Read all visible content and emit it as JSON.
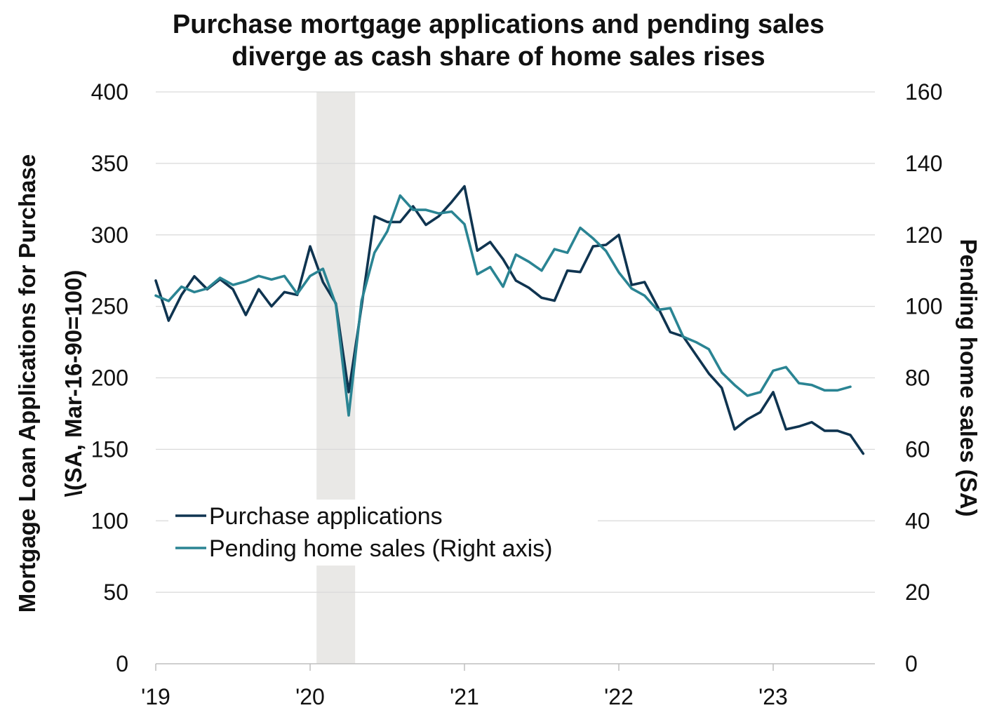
{
  "chart_data": {
    "type": "line",
    "title_line1": "Purchase mortgage applications and pending sales",
    "title_line2": "diverge as cash share of home sales rises",
    "ylabel_left_line1": "Mortgage Loan Applications for Purchase",
    "ylabel_left_line2": "\\(SA, Mar-16-90=100)",
    "ylabel_right": "Pending home sales (SA)",
    "ylim_left": [
      0,
      400
    ],
    "ylim_right": [
      0,
      160
    ],
    "left_ticks": [
      "0",
      "50",
      "100",
      "150",
      "200",
      "250",
      "300",
      "350",
      "400"
    ],
    "right_ticks": [
      "0",
      "20",
      "40",
      "60",
      "80",
      "100",
      "120",
      "140",
      "160"
    ],
    "x_ticks": [
      "'19",
      "'20",
      "'21",
      "'22",
      "'23"
    ],
    "x_range": [
      "2019-01",
      "2023-08"
    ],
    "grid": "horizontal",
    "legend_placement": "lower-left",
    "shaded_period": [
      "2020-02",
      "2020-04"
    ],
    "series": [
      {
        "name": "Purchase applications",
        "axis": "left",
        "color": "#0f3450",
        "x": [
          "2019-01",
          "2019-02",
          "2019-03",
          "2019-04",
          "2019-05",
          "2019-06",
          "2019-07",
          "2019-08",
          "2019-09",
          "2019-10",
          "2019-11",
          "2019-12",
          "2020-01",
          "2020-02",
          "2020-03",
          "2020-04",
          "2020-05",
          "2020-06",
          "2020-07",
          "2020-08",
          "2020-09",
          "2020-10",
          "2020-11",
          "2020-12",
          "2021-01",
          "2021-02",
          "2021-03",
          "2021-04",
          "2021-05",
          "2021-06",
          "2021-07",
          "2021-08",
          "2021-09",
          "2021-10",
          "2021-11",
          "2021-12",
          "2022-01",
          "2022-02",
          "2022-03",
          "2022-04",
          "2022-05",
          "2022-06",
          "2022-07",
          "2022-08",
          "2022-09",
          "2022-10",
          "2022-11",
          "2022-12",
          "2023-01",
          "2023-02",
          "2023-03",
          "2023-04",
          "2023-05",
          "2023-06",
          "2023-07",
          "2023-08"
        ],
        "values": [
          268,
          240,
          258,
          271,
          262,
          269,
          262,
          244,
          262,
          250,
          260,
          258,
          292,
          267,
          252,
          190,
          250,
          313,
          309,
          309,
          320,
          307,
          313,
          323,
          334,
          289,
          295,
          283,
          268,
          263,
          256,
          254,
          275,
          274,
          292,
          293,
          300,
          265,
          267,
          250,
          232,
          229,
          216,
          203,
          193,
          164,
          171,
          176,
          190,
          164,
          166,
          169,
          163,
          163,
          160,
          147
        ]
      },
      {
        "name": "Pending home sales (Right axis)",
        "axis": "right",
        "color": "#2a8493",
        "x": [
          "2019-01",
          "2019-02",
          "2019-03",
          "2019-04",
          "2019-05",
          "2019-06",
          "2019-07",
          "2019-08",
          "2019-09",
          "2019-10",
          "2019-11",
          "2019-12",
          "2020-01",
          "2020-02",
          "2020-03",
          "2020-04",
          "2020-05",
          "2020-06",
          "2020-07",
          "2020-08",
          "2020-09",
          "2020-10",
          "2020-11",
          "2020-12",
          "2021-01",
          "2021-02",
          "2021-03",
          "2021-04",
          "2021-05",
          "2021-06",
          "2021-07",
          "2021-08",
          "2021-09",
          "2021-10",
          "2021-11",
          "2021-12",
          "2022-01",
          "2022-02",
          "2022-03",
          "2022-04",
          "2022-05",
          "2022-06",
          "2022-07",
          "2022-08",
          "2022-09",
          "2022-10",
          "2022-11",
          "2022-12",
          "2023-01",
          "2023-02",
          "2023-03",
          "2023-04",
          "2023-05",
          "2023-06",
          "2023-07",
          "2023-08"
        ],
        "values": [
          103,
          101.5,
          105.5,
          104,
          105,
          108,
          106,
          107,
          108.5,
          107.5,
          108.5,
          103.5,
          108.5,
          110.5,
          100.5,
          69.5,
          101.5,
          115,
          121,
          131,
          127,
          127,
          126,
          126.5,
          123,
          109,
          111,
          105.5,
          114.5,
          112.5,
          110,
          116,
          115,
          122,
          119,
          115.5,
          109.5,
          105,
          103,
          99,
          99.5,
          91.5,
          90,
          88,
          81.5,
          78,
          75,
          76,
          82,
          83,
          78.5,
          78,
          76.5,
          76.5,
          77.5,
          null
        ]
      }
    ]
  }
}
